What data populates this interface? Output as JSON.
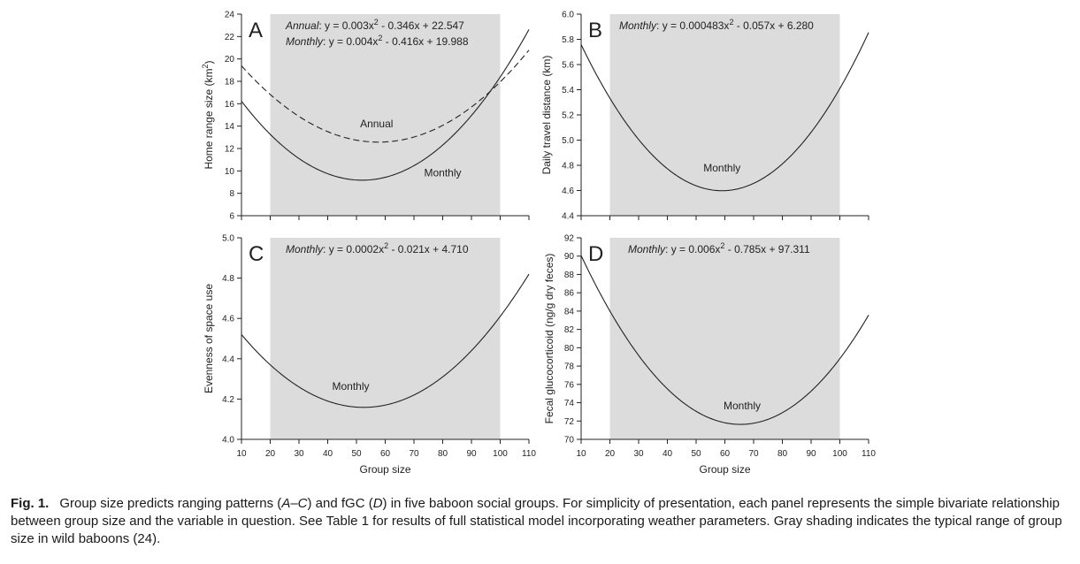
{
  "chart_data": [
    {
      "type": "line",
      "panel_label": "A",
      "xlabel": "",
      "ylabel": "Home range size (km",
      "ylabel_sup": "2",
      "ylabel_tail": ")",
      "xlim": [
        10,
        110
      ],
      "ylim": [
        6,
        24
      ],
      "xticks": [
        "10",
        "20",
        "30",
        "40",
        "50",
        "60",
        "70",
        "80",
        "90",
        "100",
        "110"
      ],
      "show_xtick_labels": false,
      "yticks": [
        "6",
        "8",
        "10",
        "12",
        "14",
        "16",
        "18",
        "20",
        "22",
        "24"
      ],
      "shade_range": [
        20,
        100
      ],
      "equations": [
        {
          "name": "Annual",
          "lhs": "y = 0.003x",
          "sup": "2",
          "rhs": " - 0.346x + 22.547"
        },
        {
          "name": "Monthly",
          "lhs": "y = 0.004x",
          "sup": "2",
          "rhs": " - 0.416x + 19.988"
        }
      ],
      "series": [
        {
          "name": "Annual",
          "a": 0.003,
          "b": -0.346,
          "c": 22.547,
          "dashed": true,
          "label": "Annual",
          "label_at": [
            57,
            13.9
          ]
        },
        {
          "name": "Monthly",
          "a": 0.004,
          "b": -0.416,
          "c": 19.988,
          "dashed": false,
          "label": "Monthly",
          "label_at": [
            80,
            9.5
          ]
        }
      ]
    },
    {
      "type": "line",
      "panel_label": "B",
      "xlabel": "",
      "ylabel": "Daily travel distance (km)",
      "xlim": [
        10,
        110
      ],
      "ylim": [
        4.4,
        6.0
      ],
      "xticks": [
        "10",
        "20",
        "30",
        "40",
        "50",
        "60",
        "70",
        "80",
        "90",
        "100",
        "110"
      ],
      "show_xtick_labels": false,
      "yticks": [
        "4.4",
        "4.6",
        "4.8",
        "5.0",
        "5.2",
        "5.4",
        "5.6",
        "5.8",
        "6.0"
      ],
      "shade_range": [
        20,
        100
      ],
      "equations": [
        {
          "name": "Monthly",
          "lhs": "y = 0.000483x",
          "sup": "2",
          "rhs": " - 0.057x + 6.280"
        }
      ],
      "series": [
        {
          "name": "Monthly",
          "a": 0.000483,
          "b": -0.057,
          "c": 6.28,
          "dashed": false,
          "label": "Monthly",
          "label_at": [
            59,
            4.75
          ]
        }
      ]
    },
    {
      "type": "line",
      "panel_label": "C",
      "xlabel": "Group size",
      "ylabel": "Evenness of space use",
      "xlim": [
        10,
        110
      ],
      "ylim": [
        4.0,
        5.0
      ],
      "xticks": [
        "10",
        "20",
        "30",
        "40",
        "50",
        "60",
        "70",
        "80",
        "90",
        "100",
        "110"
      ],
      "show_xtick_labels": true,
      "yticks": [
        "4.0",
        "4.2",
        "4.4",
        "4.6",
        "4.8",
        "5.0"
      ],
      "shade_range": [
        20,
        100
      ],
      "equations": [
        {
          "name": "Monthly",
          "lhs": "y = 0.0002x",
          "sup": "2",
          "rhs": " - 0.021x + 4.710"
        }
      ],
      "series": [
        {
          "name": "Monthly",
          "a": 0.0002,
          "b": -0.021,
          "c": 4.71,
          "dashed": false,
          "label": "Monthly",
          "label_at": [
            48,
            4.245
          ]
        }
      ]
    },
    {
      "type": "line",
      "panel_label": "D",
      "xlabel": "Group size",
      "ylabel": "Fecal glucocorticoid (ng/g dry feces)",
      "xlim": [
        10,
        110
      ],
      "ylim": [
        70,
        92
      ],
      "xticks": [
        "10",
        "20",
        "30",
        "40",
        "50",
        "60",
        "70",
        "80",
        "90",
        "100",
        "110"
      ],
      "show_xtick_labels": true,
      "yticks": [
        "70",
        "72",
        "74",
        "76",
        "78",
        "80",
        "82",
        "84",
        "86",
        "88",
        "90",
        "92"
      ],
      "shade_range": [
        20,
        100
      ],
      "equations": [
        {
          "name": "Monthly",
          "lhs": "y = 0.006x",
          "sup": "2",
          "rhs": " - 0.785x + 97.311"
        }
      ],
      "series": [
        {
          "name": "Monthly",
          "a": 0.006,
          "b": -0.785,
          "c": 97.311,
          "dashed": false,
          "label": "Monthly",
          "label_at": [
            66,
            73.3
          ]
        }
      ]
    }
  ],
  "caption": {
    "lead": "Fig. 1.",
    "p1": "Group size predicts ranging patterns (",
    "i1": "A–C",
    "p2": ") and fGC (",
    "i2": "D",
    "p3": ") in five baboon social groups. For simplicity of presentation, each panel represents the simple bivariate relationship between group size and the variable in question. See Table 1 for results of full statistical model incorporating weather parameters. Gray shading indicates the typical range of group size in wild baboons (24)."
  }
}
